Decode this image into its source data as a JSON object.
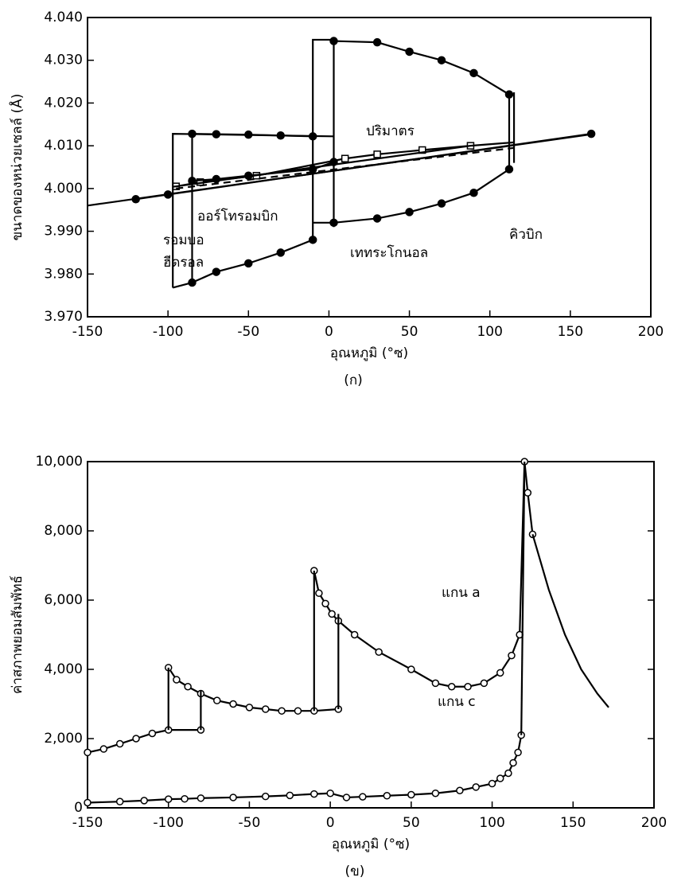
{
  "chart_data": [
    {
      "type": "line",
      "caption": "(ก)",
      "xlabel": "อุณหภูมิ (°ซ)",
      "ylabel": "ขนาดของหน่วยเซลล์ (Å)",
      "annotations": [
        "ปริมาตร",
        "ออร์โทรอมบิก",
        "รอมบอ",
        "ฮีดรอล",
        "เททระโกนอล",
        "คิวบิก"
      ],
      "xlim": [
        -150,
        200
      ],
      "xticks": [
        -150,
        -100,
        -50,
        0,
        50,
        100,
        150,
        200
      ],
      "ylim": [
        3.97,
        4.04
      ],
      "yticks": [
        {
          "value": 3.97,
          "label": "3.970"
        },
        {
          "value": 3.98,
          "label": "3.980"
        },
        {
          "value": 3.99,
          "label": "3.990"
        },
        {
          "value": 4.0,
          "label": "4.000"
        },
        {
          "value": 4.01,
          "label": "4.010"
        },
        {
          "value": 4.02,
          "label": "4.020"
        },
        {
          "value": 4.03,
          "label": "4.030"
        },
        {
          "value": 4.04,
          "label": "4.040"
        }
      ],
      "series": [
        {
          "color": "#000000",
          "marker": "none",
          "dash": false,
          "x": [
            -150,
            165
          ],
          "values": [
            3.996,
            4.0128
          ]
        },
        {
          "color": "#000000",
          "marker": "filled-circle",
          "dash": false,
          "x": [
            -120,
            -100,
            163
          ],
          "values": [
            3.9975,
            3.9986,
            4.0128
          ]
        },
        {
          "color": "#000000",
          "marker": "open-square",
          "dash": false,
          "x": [
            -95,
            -80,
            -45,
            10,
            30,
            58,
            88
          ],
          "values": [
            4.0005,
            4.0015,
            4.003,
            4.007,
            4.008,
            4.009,
            4.01
          ]
        },
        {
          "color": "#000000",
          "marker": "none",
          "dash": false,
          "x": [
            -97,
            -95,
            88,
            115
          ],
          "values": [
            4.0004,
            4.0005,
            4.01,
            4.0108
          ]
        },
        {
          "color": "#000000",
          "marker": "none",
          "dash": true,
          "x": [
            -95,
            115
          ],
          "values": [
            4.0,
            4.0095
          ]
        },
        {
          "color": "#000000",
          "marker": "filled-circle",
          "dash": false,
          "x": [
            -85,
            -70,
            -50,
            -10,
            3
          ],
          "values": [
            4.0018,
            4.0022,
            4.003,
            4.0045,
            4.0062
          ]
        },
        {
          "color": "#000000",
          "marker": "filled-circle",
          "dash": false,
          "x": [
            -85,
            -70,
            -50,
            -30,
            -10
          ],
          "values": [
            4.0128,
            4.0127,
            4.0126,
            4.0124,
            4.0122
          ]
        },
        {
          "color": "#000000",
          "marker": "filled-circle",
          "dash": false,
          "x": [
            -85,
            -70,
            -50,
            -30,
            -10
          ],
          "values": [
            3.978,
            3.9805,
            3.9825,
            3.985,
            3.988
          ]
        },
        {
          "color": "#000000",
          "marker": "filled-circle",
          "dash": false,
          "x": [
            3,
            30,
            50,
            70,
            90,
            112
          ],
          "values": [
            4.0345,
            4.0342,
            4.032,
            4.03,
            4.027,
            4.022
          ]
        },
        {
          "color": "#000000",
          "marker": "filled-circle",
          "dash": false,
          "x": [
            3,
            30,
            50,
            70,
            90,
            112
          ],
          "values": [
            3.992,
            3.993,
            3.9945,
            3.9965,
            3.999,
            4.0045
          ]
        },
        {
          "color": "#000000",
          "marker": "none",
          "dash": false,
          "x": [
            -97,
            -97,
            3
          ],
          "values": [
            3.9768,
            4.0128,
            4.0122
          ]
        },
        {
          "color": "#000000",
          "marker": "none",
          "dash": false,
          "x": [
            -97,
            -85
          ],
          "values": [
            3.9768,
            3.978
          ]
        },
        {
          "color": "#000000",
          "marker": "none",
          "dash": false,
          "x": [
            -85,
            -85
          ],
          "values": [
            3.978,
            4.0128
          ]
        },
        {
          "color": "#000000",
          "marker": "none",
          "dash": false,
          "x": [
            -10,
            -10,
            3,
            3
          ],
          "values": [
            3.988,
            4.0348,
            4.0348,
            3.991
          ]
        },
        {
          "color": "#000000",
          "marker": "none",
          "dash": false,
          "x": [
            -10,
            3
          ],
          "values": [
            3.992,
            3.992
          ]
        },
        {
          "color": "#000000",
          "marker": "none",
          "dash": false,
          "x": [
            112,
            112
          ],
          "values": [
            4.0045,
            4.022
          ]
        },
        {
          "color": "#000000",
          "marker": "none",
          "dash": false,
          "x": [
            115,
            115
          ],
          "values": [
            4.006,
            4.0225
          ]
        }
      ]
    },
    {
      "type": "line",
      "caption": "(ข)",
      "xlabel": "อุณหภูมิ (°ซ)",
      "ylabel": "ค่าสภาพยอมสัมพัทธ์",
      "annotations": [
        "แกน a",
        "แกน c"
      ],
      "xlim": [
        -150,
        200
      ],
      "xticks": [
        -150,
        -100,
        -50,
        0,
        50,
        100,
        150,
        200
      ],
      "ylim": [
        0,
        10000
      ],
      "yticks": [
        0,
        {
          "value": 2000,
          "label": "2,000"
        },
        {
          "value": 4000,
          "label": "4,000"
        },
        {
          "value": 6000,
          "label": "6,000"
        },
        {
          "value": 8000,
          "label": "8,000"
        },
        {
          "value": 10000,
          "label": "10,000"
        }
      ],
      "series": [
        {
          "color": "#000000",
          "marker": "open-circle",
          "dash": false,
          "x": [
            -150,
            -140,
            -130,
            -120,
            -110,
            -100,
            -80
          ],
          "values": [
            1600,
            1700,
            1850,
            2000,
            2150,
            2250,
            2250
          ]
        },
        {
          "color": "#000000",
          "marker": "open-circle",
          "dash": false,
          "x": [
            -100,
            -95,
            -88,
            -80,
            -70,
            -60,
            -50,
            -40,
            -30,
            -20,
            -10,
            5
          ],
          "values": [
            4050,
            3700,
            3500,
            3300,
            3100,
            3000,
            2900,
            2850,
            2800,
            2800,
            2800,
            2850
          ]
        },
        {
          "color": "#000000",
          "marker": "open-circle",
          "dash": false,
          "x": [
            -10,
            -7,
            -3,
            1,
            5,
            15,
            30,
            50,
            65,
            75,
            85,
            95,
            105,
            112,
            117,
            120,
            122,
            125
          ],
          "values": [
            6850,
            6200,
            5900,
            5600,
            5400,
            5000,
            4500,
            4000,
            3600,
            3500,
            3500,
            3600,
            3900,
            4400,
            5000,
            10000,
            9100,
            7900
          ]
        },
        {
          "color": "#000000",
          "marker": "none",
          "dash": false,
          "x": [
            125,
            135,
            145,
            155,
            165,
            172
          ],
          "values": [
            7900,
            6300,
            5000,
            4000,
            3300,
            2900
          ]
        },
        {
          "color": "#000000",
          "marker": "none",
          "dash": false,
          "x": [
            -100,
            -100
          ],
          "values": [
            2250,
            4050
          ]
        },
        {
          "color": "#000000",
          "marker": "none",
          "dash": false,
          "x": [
            -80,
            -80
          ],
          "values": [
            2250,
            3400
          ]
        },
        {
          "color": "#000000",
          "marker": "none",
          "dash": false,
          "x": [
            -10,
            -10
          ],
          "values": [
            2800,
            6850
          ]
        },
        {
          "color": "#000000",
          "marker": "none",
          "dash": false,
          "x": [
            5,
            5
          ],
          "values": [
            2850,
            5600
          ]
        },
        {
          "color": "#000000",
          "marker": "open-circle",
          "dash": false,
          "x": [
            -150,
            -130,
            -115,
            -100,
            -90,
            -80,
            -60,
            -40,
            -25,
            -10,
            0,
            10,
            20,
            35,
            50,
            65,
            80,
            90,
            100,
            105,
            110,
            113,
            116,
            118
          ],
          "values": [
            150,
            180,
            210,
            250,
            260,
            280,
            300,
            330,
            360,
            400,
            420,
            300,
            320,
            350,
            380,
            420,
            500,
            600,
            700,
            850,
            1000,
            1300,
            1600,
            2100
          ]
        },
        {
          "color": "#000000",
          "marker": "none",
          "dash": false,
          "x": [
            118,
            120
          ],
          "values": [
            2100,
            10000
          ]
        }
      ]
    }
  ]
}
